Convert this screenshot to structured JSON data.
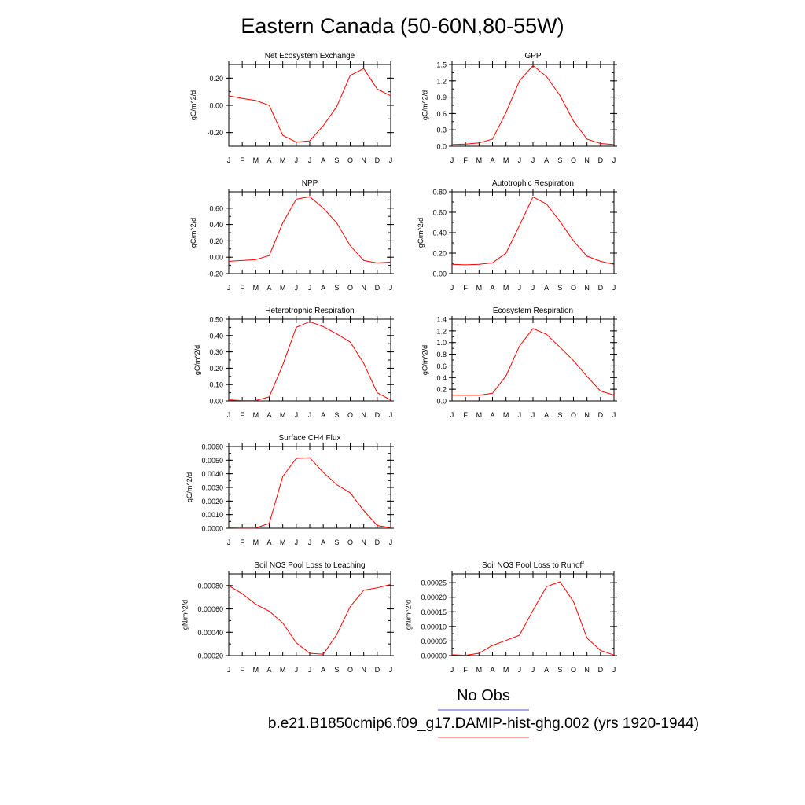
{
  "page": {
    "title": "Eastern Canada (50-60N,80-55W)"
  },
  "legend": {
    "items": [
      {
        "label": "No Obs",
        "color": "#6f78e8"
      },
      {
        "label": "b.e21.B1850cmip6.f09_g17.DAMIP-hist-ghg.002 (yrs 1920-1944)",
        "color": "#ff6f6f"
      }
    ]
  },
  "chart_data": [
    {
      "type": "line",
      "title": "Net Ecosystem Exchange",
      "ylabel": "gC/m^2/d",
      "categories": [
        "J",
        "F",
        "M",
        "A",
        "M",
        "J",
        "J",
        "A",
        "S",
        "O",
        "N",
        "D",
        "J"
      ],
      "ylim": [
        -0.3,
        0.3
      ],
      "yticks": [
        -0.2,
        0.0,
        0.2
      ],
      "yticklabels": [
        "-0.20",
        "0.00",
        "0.20"
      ],
      "series": [
        {
          "color": "#ff0000",
          "values": [
            0.07,
            0.05,
            0.035,
            0.0,
            -0.22,
            -0.27,
            -0.26,
            -0.15,
            -0.01,
            0.22,
            0.27,
            0.12,
            0.07
          ]
        }
      ]
    },
    {
      "type": "line",
      "title": "GPP",
      "ylabel": "gC/m^2/d",
      "categories": [
        "J",
        "F",
        "M",
        "A",
        "M",
        "J",
        "J",
        "A",
        "S",
        "O",
        "N",
        "D",
        "J"
      ],
      "ylim": [
        0.0,
        1.5
      ],
      "yticks": [
        0.0,
        0.3,
        0.6,
        0.9,
        1.2,
        1.5
      ],
      "yticklabels": [
        "0.0",
        "0.3",
        "0.6",
        "0.9",
        "1.2",
        "1.5"
      ],
      "series": [
        {
          "color": "#ff0000",
          "values": [
            0.03,
            0.04,
            0.06,
            0.13,
            0.62,
            1.2,
            1.48,
            1.28,
            0.93,
            0.46,
            0.13,
            0.05,
            0.03
          ]
        }
      ]
    },
    {
      "type": "line",
      "title": "NPP",
      "ylabel": "gC/m^2/d",
      "categories": [
        "J",
        "F",
        "M",
        "A",
        "M",
        "J",
        "J",
        "A",
        "S",
        "O",
        "N",
        "D",
        "J"
      ],
      "ylim": [
        -0.2,
        0.8
      ],
      "yticks": [
        -0.2,
        0.0,
        0.2,
        0.4,
        0.6
      ],
      "yticklabels": [
        "-0.20",
        "0.00",
        "0.20",
        "0.40",
        "0.60"
      ],
      "series": [
        {
          "color": "#ff0000",
          "values": [
            -0.05,
            -0.04,
            -0.03,
            0.02,
            0.42,
            0.71,
            0.74,
            0.6,
            0.42,
            0.14,
            -0.04,
            -0.07,
            -0.06
          ]
        }
      ]
    },
    {
      "type": "line",
      "title": "Autotrophic Respiration",
      "ylabel": "gC/m^2/d",
      "categories": [
        "J",
        "F",
        "M",
        "A",
        "M",
        "J",
        "J",
        "A",
        "S",
        "O",
        "N",
        "D",
        "J"
      ],
      "ylim": [
        0.0,
        0.8
      ],
      "yticks": [
        0.0,
        0.2,
        0.4,
        0.6,
        0.8
      ],
      "yticklabels": [
        "0.00",
        "0.20",
        "0.40",
        "0.60",
        "0.80"
      ],
      "series": [
        {
          "color": "#ff0000",
          "values": [
            0.09,
            0.085,
            0.09,
            0.105,
            0.2,
            0.47,
            0.75,
            0.68,
            0.51,
            0.32,
            0.17,
            0.12,
            0.09
          ]
        }
      ]
    },
    {
      "type": "line",
      "title": "Heterotrophic Respiration",
      "ylabel": "gC/m^2/d",
      "categories": [
        "J",
        "F",
        "M",
        "A",
        "M",
        "J",
        "J",
        "A",
        "S",
        "O",
        "N",
        "D",
        "J"
      ],
      "ylim": [
        0.0,
        0.5
      ],
      "yticks": [
        0.0,
        0.1,
        0.2,
        0.3,
        0.4,
        0.5
      ],
      "yticklabels": [
        "0.00",
        "0.10",
        "0.20",
        "0.30",
        "0.40",
        "0.50"
      ],
      "series": [
        {
          "color": "#ff0000",
          "values": [
            0.006,
            0.002,
            0.002,
            0.025,
            0.22,
            0.45,
            0.485,
            0.455,
            0.41,
            0.36,
            0.23,
            0.05,
            0.006
          ]
        }
      ]
    },
    {
      "type": "line",
      "title": "Ecosystem Respiration",
      "ylabel": "gC/m^2/d",
      "categories": [
        "J",
        "F",
        "M",
        "A",
        "M",
        "J",
        "J",
        "A",
        "S",
        "O",
        "N",
        "D",
        "J"
      ],
      "ylim": [
        0.0,
        1.4
      ],
      "yticks": [
        0.0,
        0.2,
        0.4,
        0.6,
        0.8,
        1.0,
        1.2,
        1.4
      ],
      "yticklabels": [
        "0.0",
        "0.2",
        "0.4",
        "0.6",
        "0.8",
        "1.0",
        "1.2",
        "1.4"
      ],
      "series": [
        {
          "color": "#ff0000",
          "values": [
            0.1,
            0.095,
            0.095,
            0.13,
            0.43,
            0.94,
            1.24,
            1.14,
            0.92,
            0.69,
            0.42,
            0.17,
            0.1
          ]
        }
      ]
    },
    {
      "type": "line",
      "title": "Surface CH4 Flux",
      "ylabel": "gC/m^2/d",
      "categories": [
        "J",
        "F",
        "M",
        "A",
        "M",
        "J",
        "J",
        "A",
        "S",
        "O",
        "N",
        "D",
        "J"
      ],
      "ylim": [
        0.0,
        0.006
      ],
      "yticks": [
        0.0,
        0.001,
        0.002,
        0.003,
        0.004,
        0.005,
        0.006
      ],
      "yticklabels": [
        "0.0000",
        "0.0010",
        "0.0020",
        "0.0030",
        "0.0040",
        "0.0050",
        "0.0060"
      ],
      "series": [
        {
          "color": "#ff0000",
          "values": [
            3e-05,
            2e-05,
            2e-05,
            0.00035,
            0.0038,
            0.00513,
            0.00518,
            0.0041,
            0.0032,
            0.0026,
            0.0013,
            0.0002,
            3e-05
          ]
        }
      ]
    },
    {
      "type": "line",
      "title": "Soil NO3 Pool Loss to Leaching",
      "ylabel": "gN/m^2/d",
      "categories": [
        "J",
        "F",
        "M",
        "A",
        "M",
        "J",
        "J",
        "A",
        "S",
        "O",
        "N",
        "D",
        "J"
      ],
      "ylim": [
        0.0002,
        0.0009
      ],
      "yticks": [
        0.0002,
        0.0004,
        0.0006,
        0.0008
      ],
      "yticklabels": [
        "0.00020",
        "0.00040",
        "0.00060",
        "0.00080"
      ],
      "series": [
        {
          "color": "#ff0000",
          "values": [
            0.0008,
            0.00073,
            0.00064,
            0.00058,
            0.00048,
            0.00031,
            0.00022,
            0.000212,
            0.00038,
            0.00062,
            0.00076,
            0.00078,
            0.00081
          ]
        }
      ]
    },
    {
      "type": "line",
      "title": "Soil NO3 Pool Loss to Runoff",
      "ylabel": "gN/m^2/d",
      "categories": [
        "J",
        "F",
        "M",
        "A",
        "M",
        "J",
        "J",
        "A",
        "S",
        "O",
        "N",
        "D",
        "J"
      ],
      "ylim": [
        0.0,
        0.00028
      ],
      "yticks": [
        0.0,
        5e-05,
        0.0001,
        0.00015,
        0.0002,
        0.00025
      ],
      "yticklabels": [
        "0.00000",
        "0.00005",
        "0.00010",
        "0.00015",
        "0.00020",
        "0.00025"
      ],
      "series": [
        {
          "color": "#ff0000",
          "values": [
            3e-06,
            1e-06,
            8e-06,
            3.5e-05,
            5.2e-05,
            7e-05,
            0.000155,
            0.000236,
            0.000253,
            0.000185,
            6e-05,
            1.8e-05,
            2e-06
          ]
        }
      ]
    }
  ]
}
